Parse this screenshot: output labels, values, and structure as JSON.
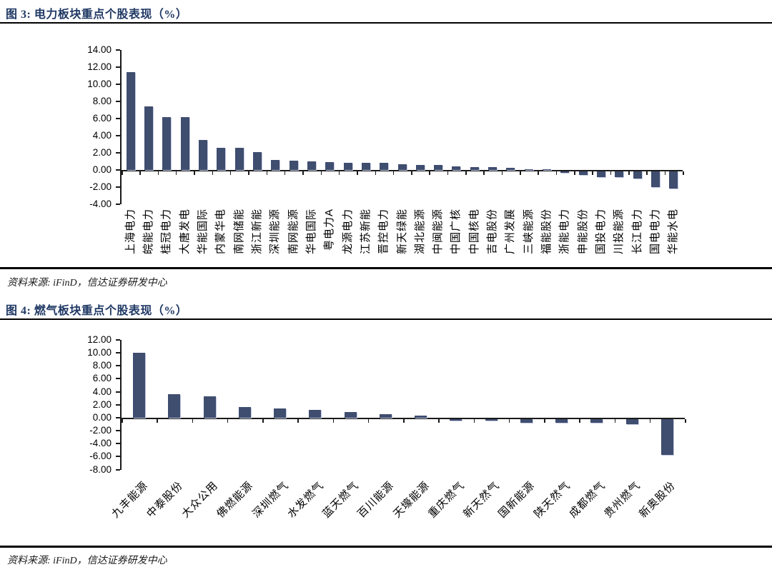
{
  "figures": [
    {
      "title": "图  3:  电力板块重点个股表现（%）",
      "source": "资料来源: iFinD，信达证券研发中心"
    },
    {
      "title": "图  4:  燃气板块重点个股表现（%）",
      "source": "资料来源: iFinD，信达证券研发中心"
    }
  ],
  "colors": {
    "bar": "#3f4d6f",
    "bar_edge": "#c3c9e0",
    "title_navy": "#1f3864",
    "axis_black": "#1a1a1a"
  },
  "chart_data": [
    {
      "type": "bar",
      "title": "电力板块重点个股表现（%）",
      "xlabel": "",
      "ylabel": "",
      "ylim": [
        -4,
        14
      ],
      "ytick_step": 2,
      "grid": false,
      "legend": "none",
      "categories": [
        "上海电力",
        "皖能电力",
        "桂冠电力",
        "大唐发电",
        "华能国际",
        "内蒙华电",
        "南网储能",
        "浙江新能",
        "深圳能源",
        "南网能源",
        "华电国际",
        "粤电力A",
        "龙源电力",
        "江苏新能",
        "晋控电力",
        "新天绿能",
        "湖北能源",
        "中闽能源",
        "中国广核",
        "中国核电",
        "吉电股份",
        "广州发展",
        "三峡能源",
        "福能股份",
        "浙能电力",
        "申能股份",
        "国投电力",
        "川投能源",
        "长江电力",
        "国电电力",
        "华能水电"
      ],
      "values": [
        11.45,
        7.4,
        6.2,
        6.2,
        3.5,
        2.55,
        2.55,
        2.05,
        1.2,
        1.05,
        1.0,
        0.9,
        0.85,
        0.85,
        0.8,
        0.7,
        0.6,
        0.55,
        0.4,
        0.35,
        0.3,
        0.25,
        0.1,
        0.05,
        -0.2,
        -0.4,
        -0.7,
        -0.7,
        -0.85,
        -1.8,
        -2.0
      ]
    },
    {
      "type": "bar",
      "title": "燃气板块重点个股表现（%）",
      "xlabel": "",
      "ylabel": "",
      "ylim": [
        -8,
        12
      ],
      "ytick_step": 2,
      "grid": false,
      "legend": "none",
      "categories": [
        "九丰能源",
        "中泰股份",
        "大众公用",
        "佛燃能源",
        "深圳燃气",
        "水发燃气",
        "蓝天燃气",
        "百川能源",
        "天壕能源",
        "重庆燃气",
        "新天然气",
        "国新能源",
        "陕天然气",
        "成都燃气",
        "贵州燃气",
        "新奥股份"
      ],
      "values": [
        10.0,
        3.6,
        3.3,
        1.6,
        1.4,
        1.2,
        0.85,
        0.55,
        0.35,
        -0.25,
        -0.2,
        -0.55,
        -0.6,
        -0.6,
        -0.75,
        -5.5
      ]
    }
  ]
}
